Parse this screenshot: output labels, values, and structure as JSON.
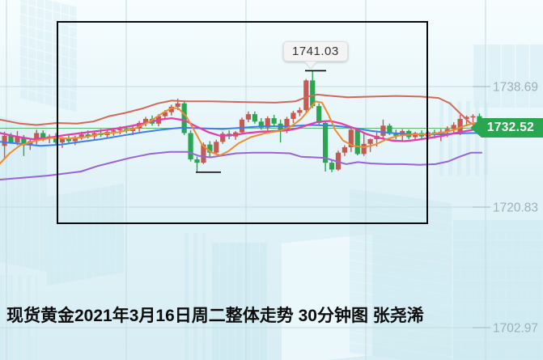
{
  "caption": {
    "text": "现货黄金2021年3月16日周二整体走势 30分钟图 张尧浠"
  },
  "tooltip": {
    "value": "1741.03"
  },
  "price_badge": {
    "value": "1732.52",
    "color": "#28a650"
  },
  "chart_data": {
    "type": "candlestick",
    "title": "现货黄金2021年3月16日周二整体走势 30分钟图",
    "y_axis": {
      "tick_labels": [
        "1738.69",
        "1720.83",
        "1702.97"
      ],
      "label_color": "#9fb0b6"
    },
    "current_price": 1732.52,
    "marked_high": 1741.03,
    "marked_low": 1726.0,
    "colors": {
      "up": "#c15b53",
      "down": "#2aa653",
      "grid": "#c6dbe3",
      "axis_tick": "#aebfc6",
      "price_line": "#5dbd6d",
      "frame": "#0a0a0a",
      "upper_band": "#d4685a",
      "ma_fast": "#ef8b31",
      "ma_mid": "#e93cac",
      "ma_slow": "#3e7ef0",
      "lower_band": "#9b63d8"
    },
    "candles": [
      [
        1729.9,
        1732.0,
        1727.9,
        1731.4
      ],
      [
        1731.4,
        1731.8,
        1730.2,
        1730.4
      ],
      [
        1730.4,
        1732.1,
        1730.0,
        1731.2
      ],
      [
        1731.2,
        1731.5,
        1728.4,
        1730.0
      ],
      [
        1730.0,
        1731.0,
        1729.3,
        1730.6
      ],
      [
        1730.6,
        1732.3,
        1730.1,
        1731.8
      ],
      [
        1731.8,
        1732.2,
        1730.6,
        1731.0
      ],
      [
        1731.0,
        1731.6,
        1730.3,
        1731.3
      ],
      [
        1731.3,
        1731.8,
        1730.0,
        1730.4
      ],
      [
        1730.4,
        1731.2,
        1729.6,
        1731.0
      ],
      [
        1731.0,
        1731.5,
        1730.2,
        1730.6
      ],
      [
        1730.6,
        1731.4,
        1730.0,
        1731.2
      ],
      [
        1731.2,
        1732.0,
        1730.8,
        1731.6
      ],
      [
        1731.6,
        1732.2,
        1731.0,
        1731.3
      ],
      [
        1731.3,
        1732.0,
        1730.8,
        1731.8
      ],
      [
        1731.8,
        1732.4,
        1731.2,
        1731.5
      ],
      [
        1731.5,
        1732.3,
        1731.1,
        1732.0
      ],
      [
        1732.0,
        1732.6,
        1731.4,
        1732.2
      ],
      [
        1732.2,
        1732.8,
        1731.6,
        1732.4
      ],
      [
        1732.4,
        1732.9,
        1731.8,
        1732.1
      ],
      [
        1732.1,
        1732.8,
        1731.5,
        1732.5
      ],
      [
        1732.5,
        1733.6,
        1732.0,
        1733.3
      ],
      [
        1733.3,
        1734.2,
        1732.8,
        1733.9
      ],
      [
        1733.9,
        1734.4,
        1732.9,
        1733.2
      ],
      [
        1733.2,
        1734.6,
        1732.8,
        1734.3
      ],
      [
        1734.3,
        1735.2,
        1733.8,
        1734.9
      ],
      [
        1734.9,
        1736.0,
        1734.4,
        1735.7
      ],
      [
        1735.7,
        1736.9,
        1735.2,
        1736.2
      ],
      [
        1736.2,
        1736.5,
        1731.5,
        1731.8
      ],
      [
        1731.8,
        1732.2,
        1727.6,
        1727.9
      ],
      [
        1727.9,
        1728.3,
        1726.1,
        1727.4
      ],
      [
        1727.4,
        1730.4,
        1727.2,
        1730.1
      ],
      [
        1730.1,
        1730.6,
        1728.3,
        1728.9
      ],
      [
        1728.9,
        1730.8,
        1728.6,
        1730.5
      ],
      [
        1730.5,
        1732.0,
        1730.2,
        1731.7
      ],
      [
        1731.7,
        1732.2,
        1730.9,
        1731.3
      ],
      [
        1731.3,
        1732.1,
        1730.8,
        1731.9
      ],
      [
        1731.9,
        1734.1,
        1731.6,
        1733.8
      ],
      [
        1733.8,
        1735.0,
        1733.4,
        1734.6
      ],
      [
        1734.6,
        1735.0,
        1733.2,
        1733.5
      ],
      [
        1733.5,
        1734.0,
        1732.3,
        1732.6
      ],
      [
        1732.6,
        1734.3,
        1732.2,
        1734.0
      ],
      [
        1734.0,
        1734.5,
        1732.8,
        1733.2
      ],
      [
        1733.2,
        1733.8,
        1730.4,
        1732.1
      ],
      [
        1732.1,
        1734.2,
        1731.8,
        1733.9
      ],
      [
        1733.9,
        1735.1,
        1733.3,
        1734.8
      ],
      [
        1734.8,
        1735.6,
        1734.3,
        1735.2
      ],
      [
        1735.2,
        1739.8,
        1734.8,
        1739.6
      ],
      [
        1739.6,
        1741.03,
        1735.5,
        1735.8
      ],
      [
        1735.8,
        1736.2,
        1733.0,
        1733.3
      ],
      [
        1733.3,
        1733.6,
        1726.1,
        1727.4
      ],
      [
        1727.4,
        1727.8,
        1726.0,
        1726.4
      ],
      [
        1726.4,
        1729.2,
        1726.2,
        1728.9
      ],
      [
        1728.9,
        1730.0,
        1728.4,
        1729.7
      ],
      [
        1729.7,
        1732.7,
        1729.0,
        1732.3
      ],
      [
        1732.3,
        1732.5,
        1728.5,
        1728.7
      ],
      [
        1728.7,
        1731.7,
        1728.4,
        1730.2
      ],
      [
        1730.2,
        1731.0,
        1729.0,
        1730.9
      ],
      [
        1730.9,
        1731.9,
        1729.8,
        1731.4
      ],
      [
        1731.4,
        1733.8,
        1730.9,
        1732.9
      ],
      [
        1732.9,
        1733.2,
        1731.5,
        1731.7
      ],
      [
        1731.7,
        1732.3,
        1730.9,
        1731.4
      ],
      [
        1731.4,
        1732.4,
        1730.7,
        1732.1
      ],
      [
        1732.1,
        1732.3,
        1730.9,
        1731.2
      ],
      [
        1731.2,
        1732.0,
        1730.8,
        1731.8
      ],
      [
        1731.8,
        1732.2,
        1730.9,
        1731.3
      ],
      [
        1731.3,
        1732.1,
        1730.8,
        1731.9
      ],
      [
        1731.9,
        1732.3,
        1731.0,
        1731.5
      ],
      [
        1731.5,
        1732.4,
        1730.6,
        1732.0
      ],
      [
        1732.0,
        1732.8,
        1731.2,
        1732.4
      ],
      [
        1732.4,
        1733.4,
        1731.9,
        1733.0
      ],
      [
        1731.7,
        1734.5,
        1731.5,
        1733.9
      ],
      [
        1733.9,
        1734.4,
        1732.8,
        1734.2
      ],
      [
        1734.2,
        1734.6,
        1733.4,
        1734.3
      ],
      [
        1734.3,
        1734.7,
        1731.9,
        1732.52
      ]
    ],
    "overlays": {
      "upper_band": [
        [
          0,
          1733.8
        ],
        [
          25,
          1733.2
        ],
        [
          45,
          1733.0
        ],
        [
          70,
          1733.3
        ],
        [
          95,
          1733.2
        ],
        [
          115,
          1733.5
        ],
        [
          135,
          1734.3
        ],
        [
          155,
          1734.8
        ],
        [
          175,
          1735.4
        ],
        [
          195,
          1736.2
        ],
        [
          212,
          1736.6
        ],
        [
          230,
          1736.5
        ],
        [
          260,
          1736.5
        ],
        [
          300,
          1736.4
        ],
        [
          340,
          1736.3
        ],
        [
          365,
          1736.5
        ],
        [
          380,
          1737.2
        ],
        [
          392,
          1737.5
        ],
        [
          410,
          1737.3
        ],
        [
          430,
          1737.1
        ],
        [
          460,
          1737.2
        ],
        [
          490,
          1737.3
        ],
        [
          520,
          1737.2
        ],
        [
          542,
          1737.0
        ],
        [
          556,
          1736.2
        ],
        [
          568,
          1734.8
        ],
        [
          580,
          1733.4
        ],
        [
          590,
          1732.7
        ],
        [
          598,
          1732.5
        ]
      ],
      "ma_fast": [
        [
          0,
          1727.3
        ],
        [
          12,
          1728.8
        ],
        [
          25,
          1730.0
        ],
        [
          45,
          1730.7
        ],
        [
          65,
          1731.1
        ],
        [
          85,
          1731.0
        ],
        [
          105,
          1731.2
        ],
        [
          125,
          1731.7
        ],
        [
          145,
          1731.9
        ],
        [
          165,
          1732.4
        ],
        [
          185,
          1733.5
        ],
        [
          200,
          1734.7
        ],
        [
          212,
          1735.5
        ],
        [
          220,
          1735.5
        ],
        [
          230,
          1734.3
        ],
        [
          240,
          1732.2
        ],
        [
          250,
          1730.0
        ],
        [
          262,
          1728.9
        ],
        [
          272,
          1728.5
        ],
        [
          282,
          1729.1
        ],
        [
          295,
          1730.3
        ],
        [
          310,
          1731.2
        ],
        [
          328,
          1731.8
        ],
        [
          345,
          1732.1
        ],
        [
          360,
          1732.8
        ],
        [
          372,
          1733.9
        ],
        [
          382,
          1735.3
        ],
        [
          390,
          1736.5
        ],
        [
          398,
          1736.3
        ],
        [
          406,
          1734.5
        ],
        [
          414,
          1732.3
        ],
        [
          424,
          1730.7
        ],
        [
          436,
          1729.9
        ],
        [
          450,
          1729.7
        ],
        [
          464,
          1730.1
        ],
        [
          478,
          1730.9
        ],
        [
          492,
          1731.4
        ],
        [
          510,
          1731.6
        ],
        [
          530,
          1731.6
        ],
        [
          548,
          1731.9
        ],
        [
          562,
          1732.3
        ],
        [
          575,
          1732.9
        ],
        [
          586,
          1733.3
        ],
        [
          595,
          1733.3
        ]
      ],
      "ma_mid": [
        [
          0,
          1731.8
        ],
        [
          20,
          1731.3
        ],
        [
          40,
          1730.9
        ],
        [
          60,
          1731.1
        ],
        [
          80,
          1731.5
        ],
        [
          100,
          1731.8
        ],
        [
          120,
          1732.1
        ],
        [
          140,
          1732.4
        ],
        [
          160,
          1732.8
        ],
        [
          180,
          1733.3
        ],
        [
          198,
          1733.8
        ],
        [
          212,
          1734.0
        ],
        [
          228,
          1733.7
        ],
        [
          242,
          1732.8
        ],
        [
          258,
          1731.9
        ],
        [
          272,
          1731.4
        ],
        [
          288,
          1731.5
        ],
        [
          305,
          1731.8
        ],
        [
          322,
          1732.0
        ],
        [
          340,
          1732.1
        ],
        [
          355,
          1732.2
        ],
        [
          368,
          1732.5
        ],
        [
          380,
          1733.0
        ],
        [
          394,
          1733.5
        ],
        [
          408,
          1733.6
        ],
        [
          422,
          1733.2
        ],
        [
          438,
          1732.5
        ],
        [
          452,
          1731.7
        ],
        [
          468,
          1731.1
        ],
        [
          484,
          1730.7
        ],
        [
          500,
          1730.6
        ],
        [
          516,
          1730.8
        ],
        [
          532,
          1731.1
        ],
        [
          548,
          1731.4
        ],
        [
          562,
          1731.8
        ],
        [
          576,
          1732.1
        ],
        [
          590,
          1732.4
        ]
      ],
      "ma_slow": [
        [
          0,
          1730.5
        ],
        [
          25,
          1730.2
        ],
        [
          50,
          1729.9
        ],
        [
          75,
          1730.1
        ],
        [
          100,
          1730.5
        ],
        [
          125,
          1730.9
        ],
        [
          150,
          1731.4
        ],
        [
          175,
          1731.9
        ],
        [
          200,
          1732.3
        ],
        [
          225,
          1732.6
        ],
        [
          250,
          1732.5
        ],
        [
          275,
          1732.4
        ],
        [
          300,
          1732.6
        ],
        [
          325,
          1732.8
        ],
        [
          355,
          1732.8
        ],
        [
          385,
          1733.0
        ],
        [
          410,
          1732.9
        ],
        [
          435,
          1732.6
        ],
        [
          460,
          1732.1
        ],
        [
          485,
          1731.8
        ],
        [
          510,
          1731.6
        ],
        [
          535,
          1731.6
        ],
        [
          560,
          1731.7
        ],
        [
          580,
          1731.8
        ],
        [
          595,
          1731.8
        ]
      ],
      "lower_band": [
        [
          0,
          1724.9
        ],
        [
          20,
          1725.1
        ],
        [
          40,
          1725.3
        ],
        [
          60,
          1725.5
        ],
        [
          80,
          1725.8
        ],
        [
          100,
          1726.1
        ],
        [
          120,
          1726.9
        ],
        [
          140,
          1727.5
        ],
        [
          160,
          1728.1
        ],
        [
          185,
          1728.7
        ],
        [
          210,
          1729.0
        ],
        [
          232,
          1729.0
        ],
        [
          246,
          1728.4
        ],
        [
          260,
          1728.2
        ],
        [
          276,
          1728.5
        ],
        [
          292,
          1728.8
        ],
        [
          312,
          1728.9
        ],
        [
          336,
          1728.9
        ],
        [
          358,
          1728.8
        ],
        [
          372,
          1728.3
        ],
        [
          388,
          1728.2
        ],
        [
          402,
          1728.1
        ],
        [
          416,
          1727.6
        ],
        [
          428,
          1727.2
        ],
        [
          442,
          1727.5
        ],
        [
          458,
          1727.3
        ],
        [
          478,
          1727.2
        ],
        [
          498,
          1727.2
        ],
        [
          518,
          1727.1
        ],
        [
          538,
          1727.2
        ],
        [
          554,
          1727.6
        ],
        [
          568,
          1728.3
        ],
        [
          582,
          1728.9
        ],
        [
          595,
          1728.9
        ]
      ]
    }
  }
}
